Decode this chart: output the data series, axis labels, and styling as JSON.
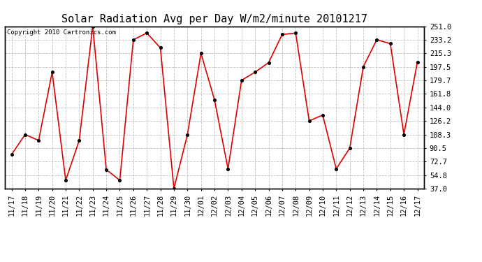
{
  "title": "Solar Radiation Avg per Day W/m2/minute 20101217",
  "copyright": "Copyright 2010 Cartronics.com",
  "dates": [
    "11/17",
    "11/18",
    "11/19",
    "11/20",
    "11/21",
    "11/22",
    "11/23",
    "11/24",
    "11/25",
    "11/26",
    "11/27",
    "11/28",
    "11/29",
    "11/30",
    "12/01",
    "12/02",
    "12/03",
    "12/04",
    "12/05",
    "12/06",
    "12/07",
    "12/08",
    "12/09",
    "12/10",
    "12/11",
    "12/12",
    "12/13",
    "12/14",
    "12/15",
    "12/16",
    "12/17"
  ],
  "values": [
    82.0,
    108.3,
    100.5,
    190.5,
    48.0,
    100.5,
    251.0,
    62.0,
    48.0,
    233.2,
    242.0,
    222.5,
    37.0,
    108.3,
    215.3,
    154.0,
    63.0,
    179.7,
    190.5,
    203.0,
    240.0,
    242.0,
    126.2,
    134.0,
    63.0,
    90.5,
    197.5,
    233.2,
    228.0,
    108.3,
    204.0
  ],
  "line_color": "#dd0000",
  "marker_color": "#990000",
  "bg_color": "#ffffff",
  "grid_color": "#c0c0c0",
  "ylim_min": 37.0,
  "ylim_max": 251.0,
  "yticks": [
    37.0,
    54.8,
    72.7,
    90.5,
    108.3,
    126.2,
    144.0,
    161.8,
    179.7,
    197.5,
    215.3,
    233.2,
    251.0
  ],
  "title_fontsize": 11,
  "copyright_fontsize": 6.5,
  "tick_fontsize": 7.5
}
